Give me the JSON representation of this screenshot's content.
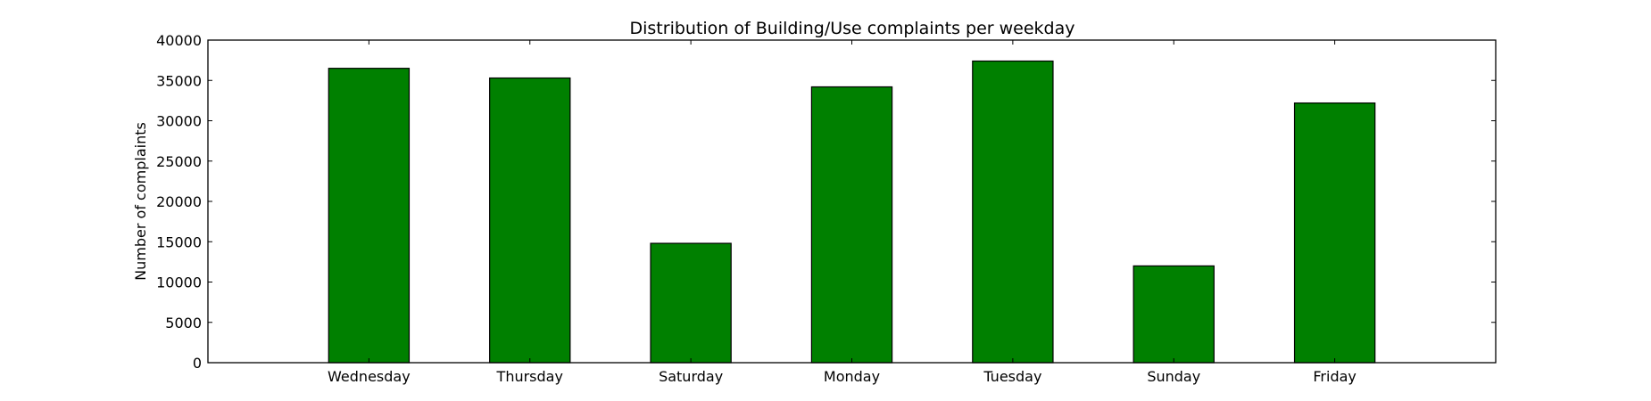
{
  "chart_data": {
    "type": "bar",
    "title": "Distribution of  Building/Use complaints per weekday",
    "xlabel": "",
    "ylabel": "Number of complaints",
    "categories": [
      "Wednesday",
      "Thursday",
      "Saturday",
      "Monday",
      "Tuesday",
      "Sunday",
      "Friday"
    ],
    "values": [
      36500,
      35300,
      14800,
      34200,
      37400,
      12000,
      32200
    ],
    "ylim": [
      0,
      40000
    ],
    "yticks": [
      0,
      5000,
      10000,
      15000,
      20000,
      25000,
      30000,
      35000,
      40000
    ],
    "bar_color": "#008000",
    "grid": false,
    "legend": "none"
  }
}
